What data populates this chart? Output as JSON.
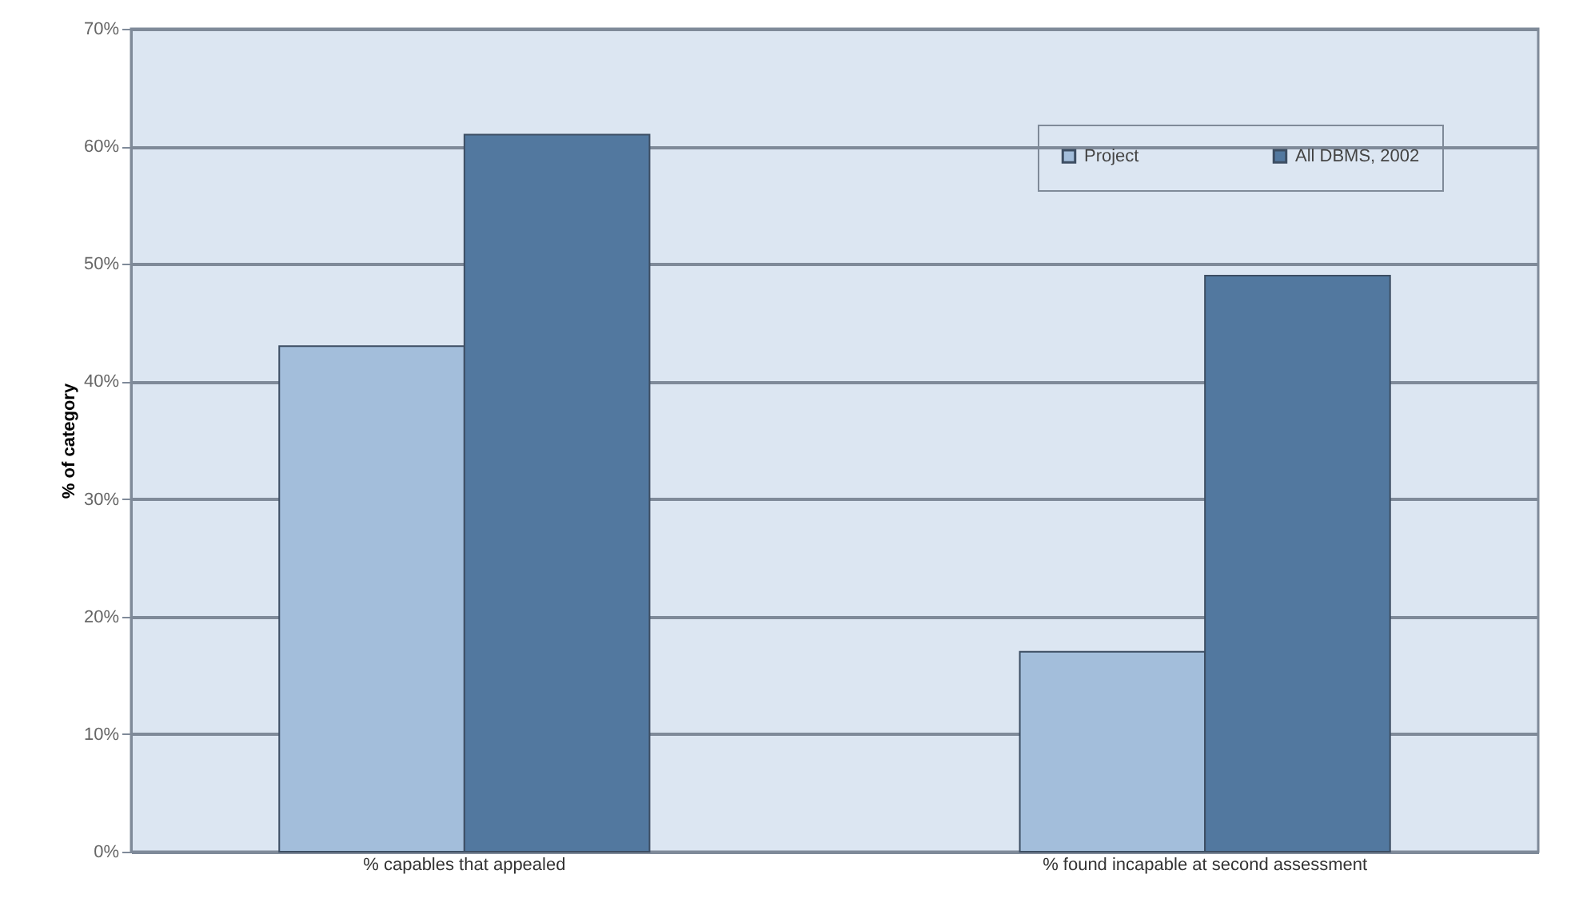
{
  "chart_data": {
    "type": "bar",
    "ylabel": "% of category",
    "categories": [
      "% capables that appealed",
      "% found incapable at second assessment"
    ],
    "series": [
      {
        "name": "Project",
        "color": "#a3bedb",
        "values": [
          43,
          17
        ]
      },
      {
        "name": "All DBMS, 2002",
        "color": "#52789f",
        "values": [
          61,
          49
        ]
      }
    ],
    "ylim": [
      0,
      70
    ],
    "yticks": [
      {
        "value": 0,
        "label": "0%"
      },
      {
        "value": 10,
        "label": "10%"
      },
      {
        "value": 20,
        "label": "20%"
      },
      {
        "value": 30,
        "label": "30%"
      },
      {
        "value": 40,
        "label": "40%"
      },
      {
        "value": 50,
        "label": "50%"
      },
      {
        "value": 60,
        "label": "60%"
      },
      {
        "value": 70,
        "label": "70%"
      }
    ],
    "grid": "y",
    "legend": "top right"
  }
}
